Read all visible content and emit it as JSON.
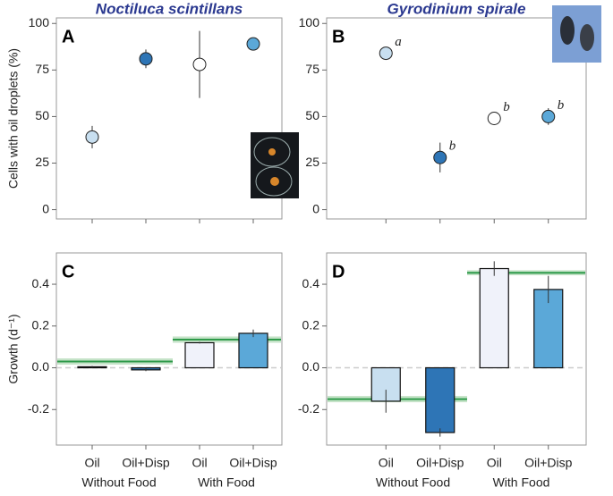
{
  "chart_data": [
    {
      "type": "scatter",
      "panel": "A",
      "title": "Noctiluca scintillans",
      "y_label": "Cells with oil droplets (%)",
      "categories": [
        null,
        null,
        null,
        null
      ],
      "values": [
        39,
        81,
        78,
        89
      ],
      "errors": [
        6,
        5,
        18,
        1
      ],
      "colors": [
        "#c8dff0",
        "#2e75b6",
        "#ffffff",
        "#5ba8d8"
      ],
      "ylim": [
        -5,
        103
      ],
      "yticks": [
        0,
        25,
        50,
        75,
        100
      ]
    },
    {
      "type": "scatter",
      "panel": "B",
      "title": "Gyrodinium spirale",
      "categories": [
        null,
        null,
        null,
        null
      ],
      "values": [
        84,
        28,
        49,
        50
      ],
      "errors": [
        1,
        8,
        1,
        4.5
      ],
      "point_labels": [
        "a",
        "b",
        "b",
        "b"
      ],
      "colors": [
        "#c8dff0",
        "#2e75b6",
        "#ffffff",
        "#5ba8d8"
      ],
      "ylim": [
        -5,
        103
      ],
      "yticks": [
        0,
        25,
        50,
        75,
        100
      ]
    },
    {
      "type": "bar",
      "panel": "C",
      "y_label": "Growth (d⁻¹)",
      "categories": [
        "Oil",
        "Oil+Disp",
        "Oil",
        "Oil+Disp"
      ],
      "groups": [
        "Without Food",
        "With Food"
      ],
      "values": [
        0.005,
        -0.01,
        0.12,
        0.165
      ],
      "errors": [
        0.004,
        0.006,
        0.004,
        0.018
      ],
      "colors": [
        "#c8dff0",
        "#2e75b6",
        "#f0f2fa",
        "#5ba8d8"
      ],
      "group_lines": [
        {
          "value": 0.03,
          "error": 0.015
        },
        {
          "value": 0.135,
          "error": 0.015
        }
      ],
      "ylim": [
        -0.37,
        0.55
      ],
      "yticks": [
        {
          "value": -0.2,
          "label": "-0.2"
        },
        {
          "value": 0,
          "label": "0.0"
        },
        0.2,
        0.4
      ],
      "zero_line": true
    },
    {
      "type": "bar",
      "panel": "D",
      "categories": [
        "Oil",
        "Oil+Disp",
        "Oil",
        "Oil+Disp"
      ],
      "groups": [
        "Without Food",
        "With Food"
      ],
      "values": [
        -0.16,
        -0.31,
        0.475,
        0.375
      ],
      "errors": [
        0.055,
        0.02,
        0.035,
        0.065
      ],
      "colors": [
        "#c8dff0",
        "#2e75b6",
        "#f0f2fa",
        "#5ba8d8"
      ],
      "group_lines": [
        {
          "value": -0.15,
          "error": 0.015
        },
        {
          "value": 0.455,
          "error": 0.012
        }
      ],
      "ylim": [
        -0.37,
        0.55
      ],
      "yticks": [
        {
          "value": -0.2,
          "label": "-0.2"
        },
        {
          "value": 0,
          "label": "0.0"
        },
        0.2,
        0.4
      ],
      "zero_line": true
    }
  ]
}
